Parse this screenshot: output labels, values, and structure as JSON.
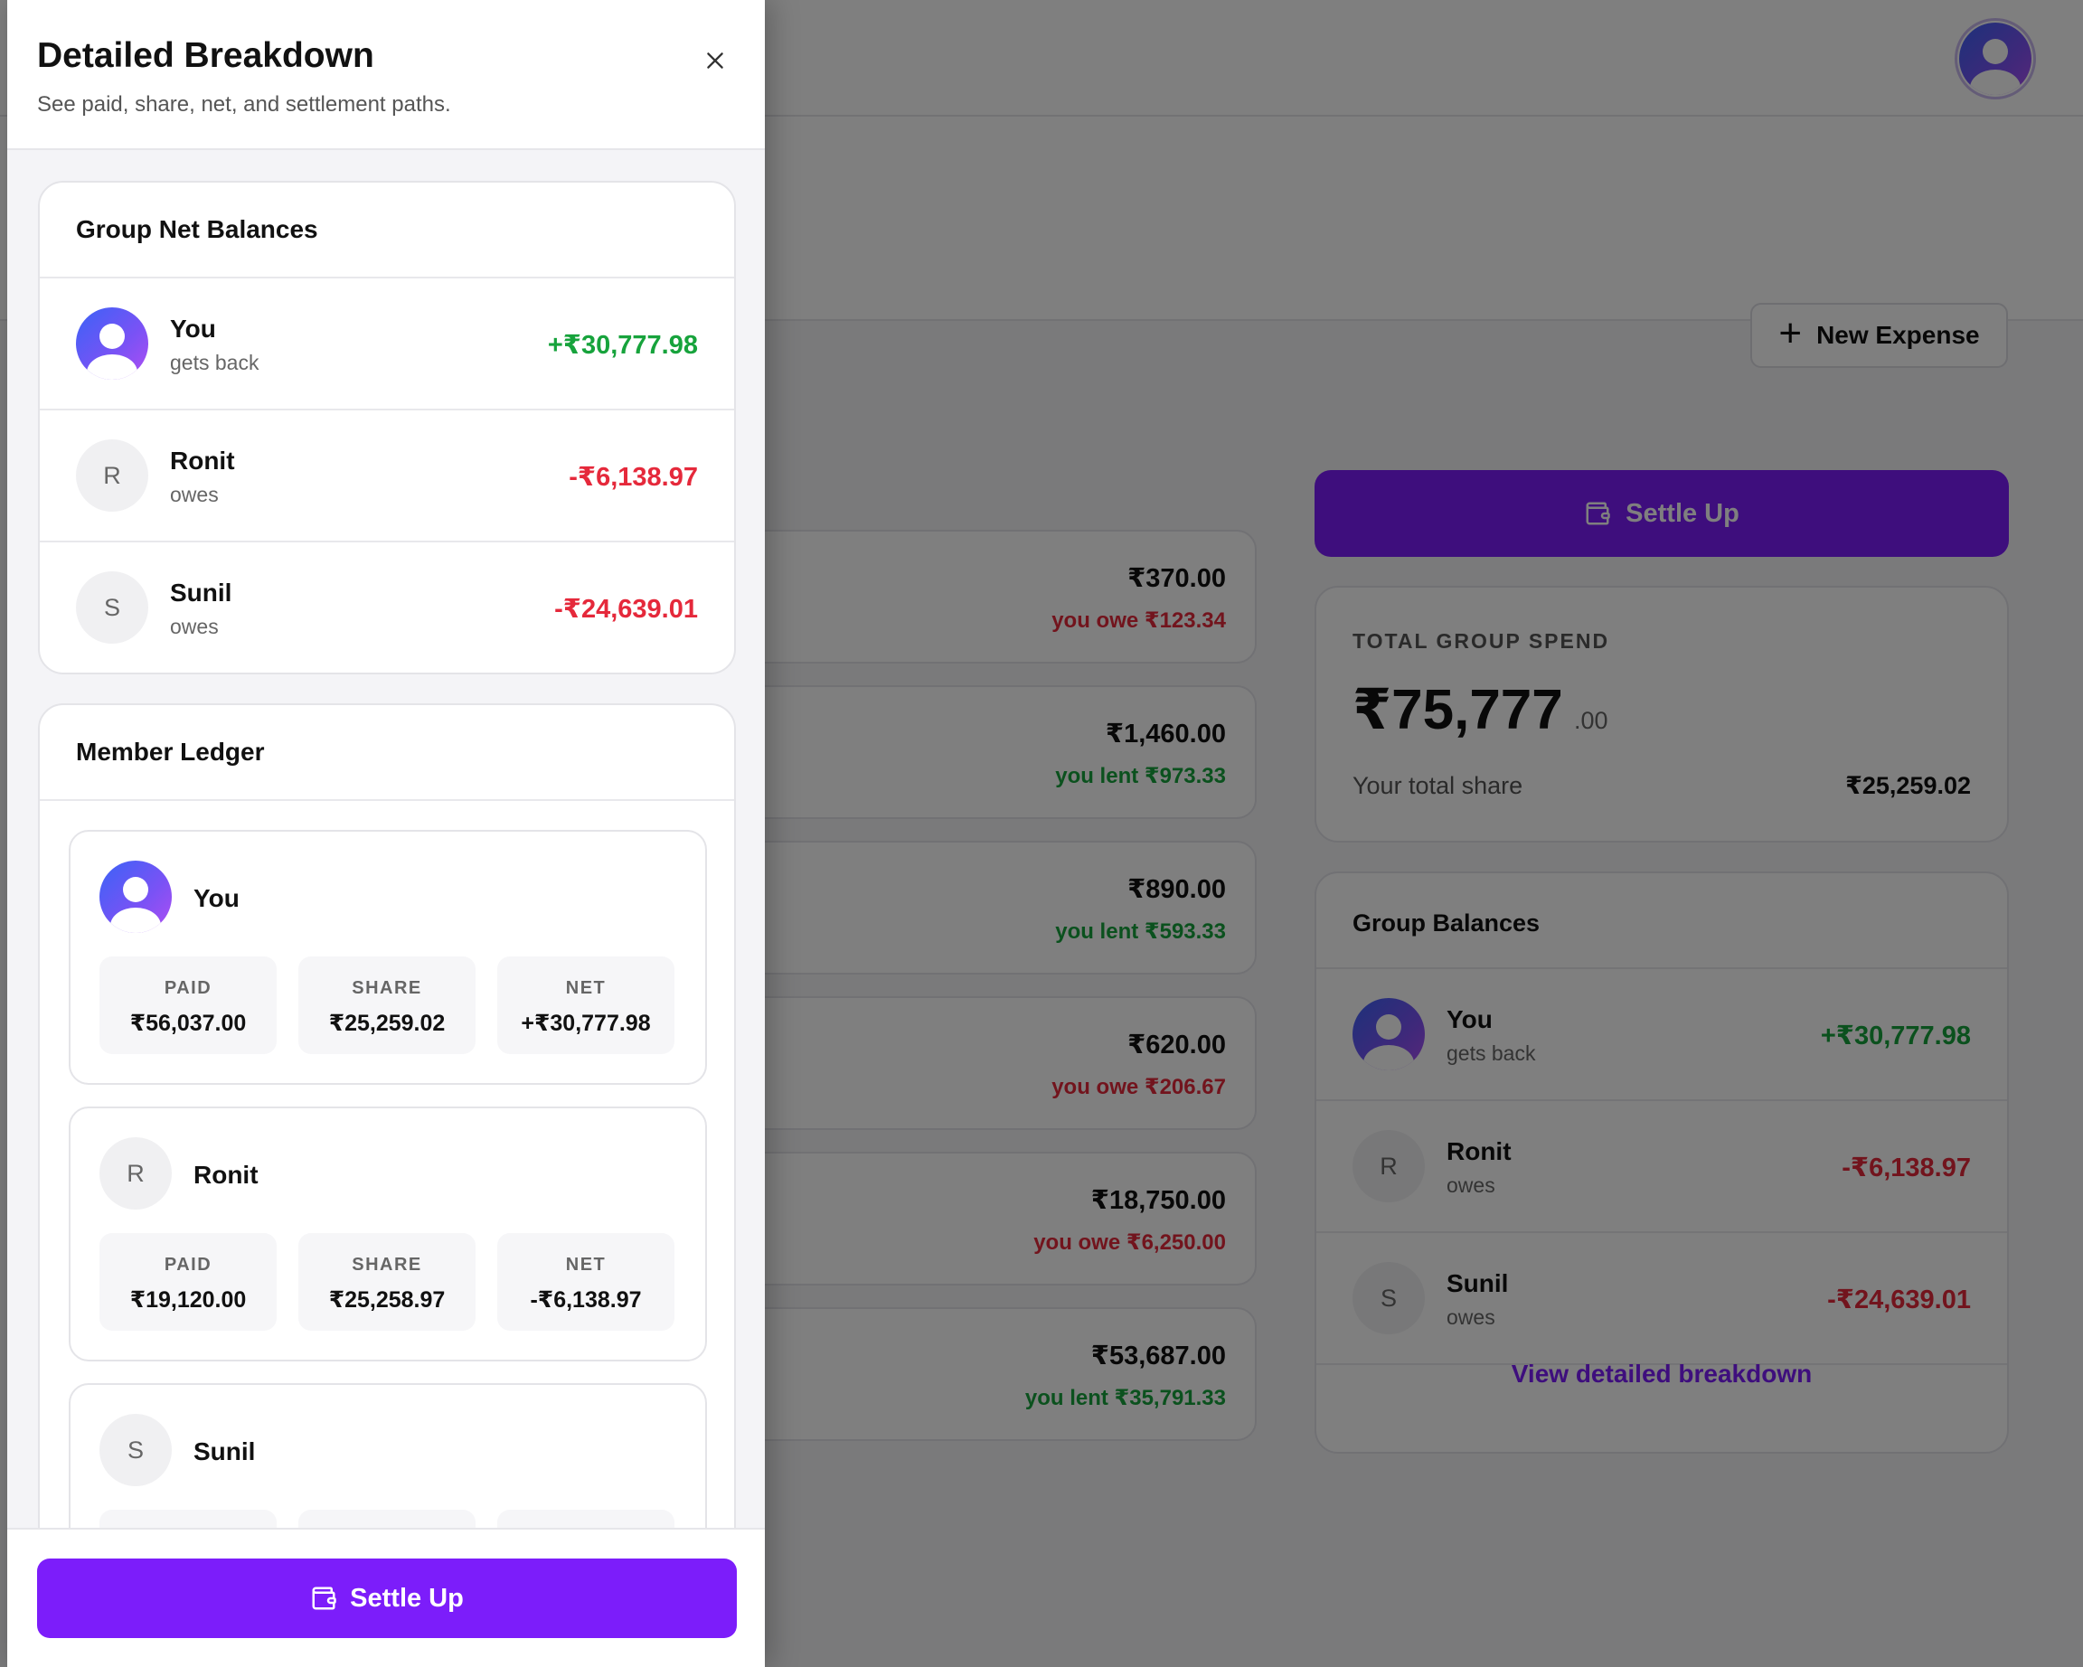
{
  "app": {
    "new_expense_label": "New Expense",
    "settle_label": "Settle Up",
    "expenses": [
      {
        "amount": "₹370.00",
        "status": "you owe ₹123.34",
        "kind": "owe"
      },
      {
        "amount": "₹1,460.00",
        "status": "you lent ₹973.33",
        "kind": "lent"
      },
      {
        "amount": "₹890.00",
        "status": "you lent ₹593.33",
        "kind": "lent"
      },
      {
        "amount": "₹620.00",
        "status": "you owe ₹206.67",
        "kind": "owe"
      },
      {
        "amount": "₹18,750.00",
        "status": "you owe ₹6,250.00",
        "kind": "owe"
      },
      {
        "amount": "₹53,687.00",
        "status": "you lent ₹35,791.33",
        "kind": "lent"
      }
    ],
    "spend": {
      "label": "TOTAL GROUP SPEND",
      "value": "₹75,777",
      "cents": ".00",
      "share_label": "Your total share",
      "share_value": "₹25,259.02"
    },
    "balances": {
      "title": "Group Balances",
      "view_link": "View detailed breakdown"
    }
  },
  "drawer": {
    "title": "Detailed Breakdown",
    "subtitle": "See paid, share, net, and settlement paths.",
    "net_title": "Group Net Balances",
    "ledger_title": "Member Ledger",
    "settle_label": "Settle Up",
    "stat_labels": {
      "paid": "PAID",
      "share": "SHARE",
      "net": "NET"
    }
  },
  "members": [
    {
      "name": "You",
      "status": "gets back",
      "net": "+₹30,777.98",
      "paid": "₹56,037.00",
      "share": "₹25,259.02",
      "kind": "lent",
      "initial": ""
    },
    {
      "name": "Ronit",
      "status": "owes",
      "net": "-₹6,138.97",
      "paid": "₹19,120.00",
      "share": "₹25,258.97",
      "kind": "owe",
      "initial": "R"
    },
    {
      "name": "Sunil",
      "status": "owes",
      "net": "-₹24,639.01",
      "paid": "",
      "share": "",
      "kind": "owe",
      "initial": "S"
    }
  ],
  "colors": {
    "accent": "#7c1dfa",
    "positive": "#17a33c",
    "negative": "#e5293b"
  },
  "icons": {
    "close": "close-icon",
    "wallet": "wallet-icon",
    "plus": "plus-icon",
    "avatar": "user-avatar-icon"
  }
}
